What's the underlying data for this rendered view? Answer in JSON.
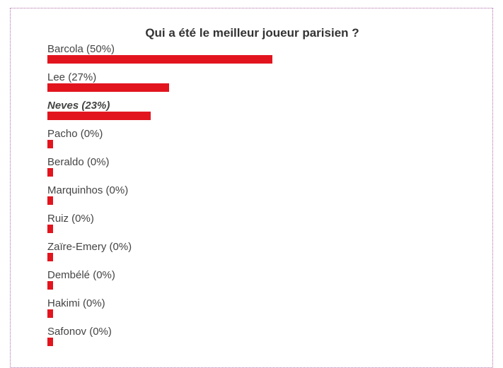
{
  "poll": {
    "title": "Qui a été le meilleur joueur parisien ?",
    "bar_color": "#e2151f",
    "selected_index": 2,
    "options": [
      {
        "label": "Barcola (50%)",
        "percent": 50
      },
      {
        "label": "Lee (27%)",
        "percent": 27
      },
      {
        "label": "Neves (23%)",
        "percent": 23
      },
      {
        "label": "Pacho (0%)",
        "percent": 0
      },
      {
        "label": "Beraldo (0%)",
        "percent": 0
      },
      {
        "label": "Marquinhos (0%)",
        "percent": 0
      },
      {
        "label": "Ruiz (0%)",
        "percent": 0
      },
      {
        "label": "Zaïre-Emery (0%)",
        "percent": 0
      },
      {
        "label": "Dembélé (0%)",
        "percent": 0
      },
      {
        "label": "Hakimi (0%)",
        "percent": 0
      },
      {
        "label": "Safonov (0%)",
        "percent": 0
      }
    ]
  }
}
